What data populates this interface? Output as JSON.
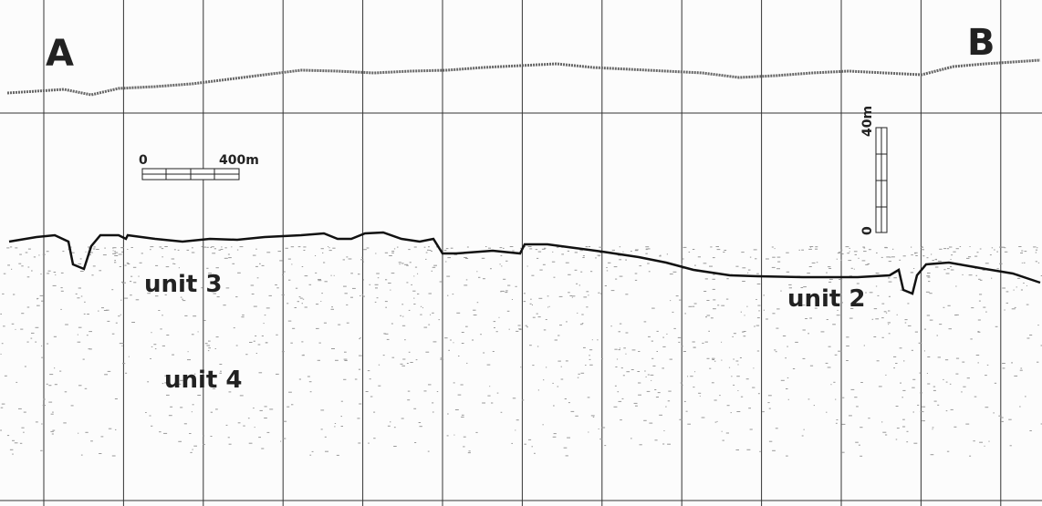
{
  "profile": {
    "end_labels": {
      "left": "A",
      "right": "B"
    },
    "horizontal_scale": {
      "start": "0",
      "end": "400m"
    },
    "vertical_scale": {
      "top": "40m",
      "bottom": "0"
    },
    "units": [
      "unit 3",
      "unit 4",
      "unit 2"
    ]
  }
}
